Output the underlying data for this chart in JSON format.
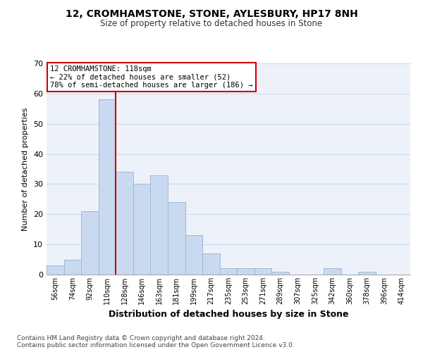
{
  "title": "12, CROMHAMSTONE, STONE, AYLESBURY, HP17 8NH",
  "subtitle": "Size of property relative to detached houses in Stone",
  "xlabel": "Distribution of detached houses by size in Stone",
  "ylabel": "Number of detached properties",
  "bin_labels": [
    "56sqm",
    "74sqm",
    "92sqm",
    "110sqm",
    "128sqm",
    "146sqm",
    "163sqm",
    "181sqm",
    "199sqm",
    "217sqm",
    "235sqm",
    "253sqm",
    "271sqm",
    "289sqm",
    "307sqm",
    "325sqm",
    "342sqm",
    "360sqm",
    "378sqm",
    "396sqm",
    "414sqm"
  ],
  "bar_values": [
    3,
    5,
    21,
    58,
    34,
    30,
    33,
    24,
    13,
    7,
    2,
    2,
    2,
    1,
    0,
    0,
    2,
    0,
    1,
    0,
    0
  ],
  "bar_color": "#c8d9f0",
  "bar_edge_color": "#a0b8d8",
  "vline_color": "#cc0000",
  "ylim": [
    0,
    70
  ],
  "yticks": [
    0,
    10,
    20,
    30,
    40,
    50,
    60,
    70
  ],
  "annotation_text": "12 CROMHAMSTONE: 118sqm\n← 22% of detached houses are smaller (52)\n78% of semi-detached houses are larger (186) →",
  "annotation_box_color": "#ffffff",
  "annotation_box_edge": "#cc0000",
  "footer_text": "Contains HM Land Registry data © Crown copyright and database right 2024.\nContains public sector information licensed under the Open Government Licence v3.0.",
  "grid_color": "#cddaeb",
  "background_color": "#edf2fa"
}
